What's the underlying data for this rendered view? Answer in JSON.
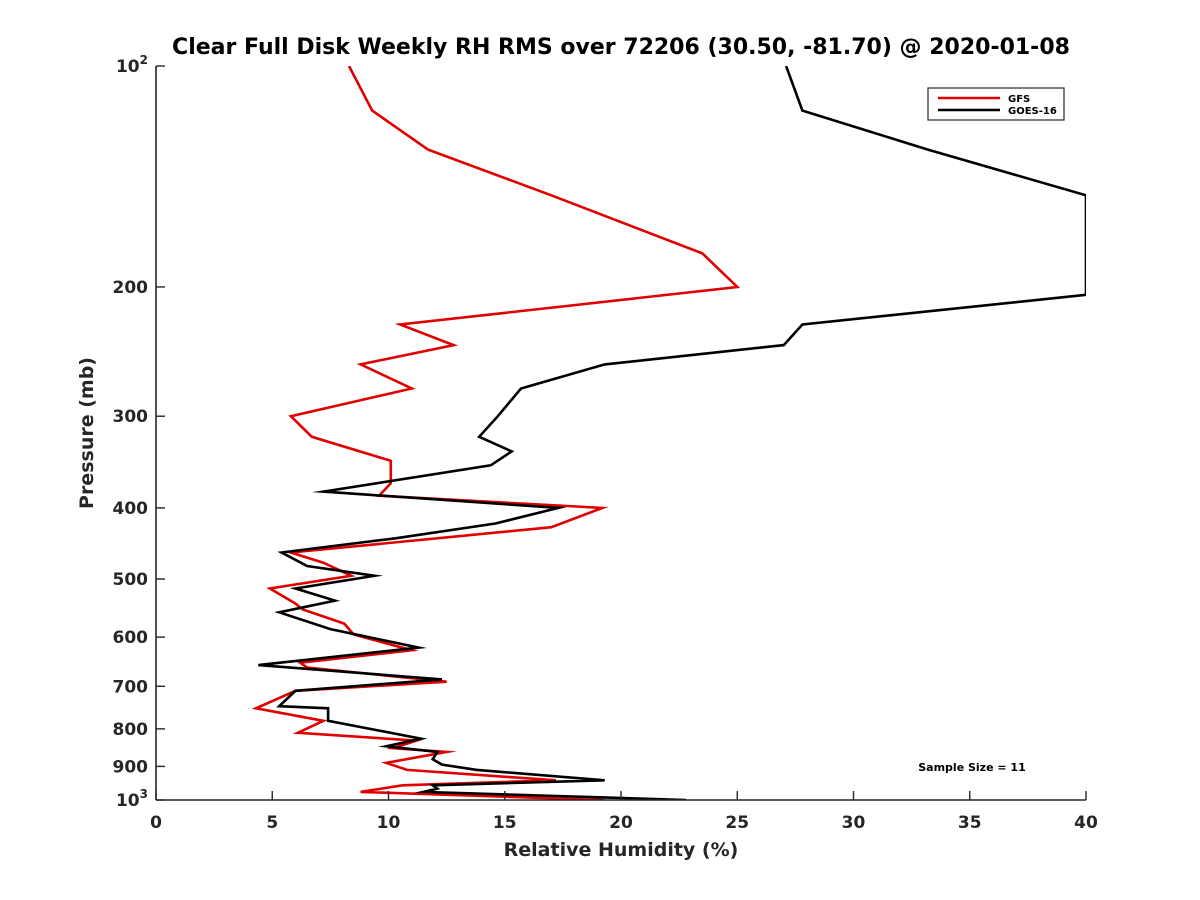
{
  "chart_data": {
    "type": "line",
    "title": "Clear Full Disk Weekly RH RMS over 72206 (30.50, -81.70) @ 2020-01-08",
    "xlabel": "Relative Humidity (%)",
    "ylabel": "Pressure (mb)",
    "xlim": [
      0,
      40
    ],
    "ylim": [
      1000,
      100
    ],
    "yscale": "log",
    "y_reversed": true,
    "grid": false,
    "legend_position": "top-right",
    "x_ticks": [
      0,
      5,
      10,
      15,
      20,
      25,
      30,
      35,
      40
    ],
    "x_tick_labels": [
      "0",
      "5",
      "10",
      "15",
      "20",
      "25",
      "30",
      "35",
      "40"
    ],
    "y_ticks": [
      100,
      200,
      300,
      400,
      500,
      600,
      700,
      800,
      900,
      1000
    ],
    "y_tick_labels": [
      {
        "base": "10",
        "sup": "2"
      },
      {
        "base": "200",
        "sup": ""
      },
      {
        "base": "300",
        "sup": ""
      },
      {
        "base": "400",
        "sup": ""
      },
      {
        "base": "500",
        "sup": ""
      },
      {
        "base": "600",
        "sup": ""
      },
      {
        "base": "700",
        "sup": ""
      },
      {
        "base": "800",
        "sup": ""
      },
      {
        "base": "900",
        "sup": ""
      },
      {
        "base": "10",
        "sup": "3"
      }
    ],
    "annotation": "Sample Size = 11",
    "series": [
      {
        "name": "GFS",
        "color": "#e00000",
        "points": [
          [
            8.3,
            100
          ],
          [
            9.3,
            115
          ],
          [
            11.7,
            130
          ],
          [
            17.0,
            150
          ],
          [
            23.5,
            180
          ],
          [
            25.0,
            200
          ],
          [
            10.5,
            225
          ],
          [
            12.8,
            240
          ],
          [
            8.8,
            255
          ],
          [
            11.0,
            275
          ],
          [
            5.8,
            300
          ],
          [
            6.7,
            320
          ],
          [
            10.1,
            345
          ],
          [
            10.1,
            370
          ],
          [
            9.6,
            385
          ],
          [
            19.2,
            400
          ],
          [
            17.0,
            425
          ],
          [
            5.8,
            460
          ],
          [
            7.2,
            475
          ],
          [
            8.4,
            495
          ],
          [
            4.9,
            515
          ],
          [
            6.0,
            540
          ],
          [
            6.3,
            550
          ],
          [
            8.1,
            575
          ],
          [
            8.5,
            595
          ],
          [
            11.0,
            625
          ],
          [
            6.2,
            650
          ],
          [
            6.5,
            660
          ],
          [
            12.5,
            690
          ],
          [
            6.0,
            710
          ],
          [
            4.3,
            750
          ],
          [
            7.2,
            780
          ],
          [
            6.1,
            810
          ],
          [
            11.2,
            830
          ],
          [
            10.2,
            850
          ],
          [
            12.5,
            860
          ],
          [
            9.9,
            890
          ],
          [
            10.8,
            910
          ],
          [
            17.2,
            940
          ],
          [
            10.6,
            955
          ],
          [
            8.8,
            975
          ],
          [
            19.3,
            1000
          ]
        ]
      },
      {
        "name": "GOES-16",
        "color": "#000000",
        "points": [
          [
            27.1,
            100
          ],
          [
            27.8,
            115
          ],
          [
            33.2,
            130
          ],
          [
            40.0,
            150
          ],
          [
            40.0,
            205
          ],
          [
            27.8,
            225
          ],
          [
            27.0,
            240
          ],
          [
            19.3,
            255
          ],
          [
            15.7,
            275
          ],
          [
            14.7,
            300
          ],
          [
            13.9,
            320
          ],
          [
            15.3,
            335
          ],
          [
            14.4,
            350
          ],
          [
            7.2,
            380
          ],
          [
            17.3,
            400
          ],
          [
            14.6,
            420
          ],
          [
            10.3,
            440
          ],
          [
            5.4,
            460
          ],
          [
            6.5,
            480
          ],
          [
            9.4,
            495
          ],
          [
            6.0,
            515
          ],
          [
            7.7,
            535
          ],
          [
            5.3,
            555
          ],
          [
            7.5,
            585
          ],
          [
            11.3,
            620
          ],
          [
            4.4,
            655
          ],
          [
            12.3,
            685
          ],
          [
            6.0,
            710
          ],
          [
            5.3,
            745
          ],
          [
            7.4,
            750
          ],
          [
            7.4,
            780
          ],
          [
            11.4,
            825
          ],
          [
            9.9,
            845
          ],
          [
            12.1,
            860
          ],
          [
            11.9,
            880
          ],
          [
            12.3,
            895
          ],
          [
            13.8,
            910
          ],
          [
            19.3,
            940
          ],
          [
            11.9,
            955
          ],
          [
            12.1,
            965
          ],
          [
            11.5,
            975
          ],
          [
            22.8,
            1000
          ]
        ]
      }
    ]
  }
}
